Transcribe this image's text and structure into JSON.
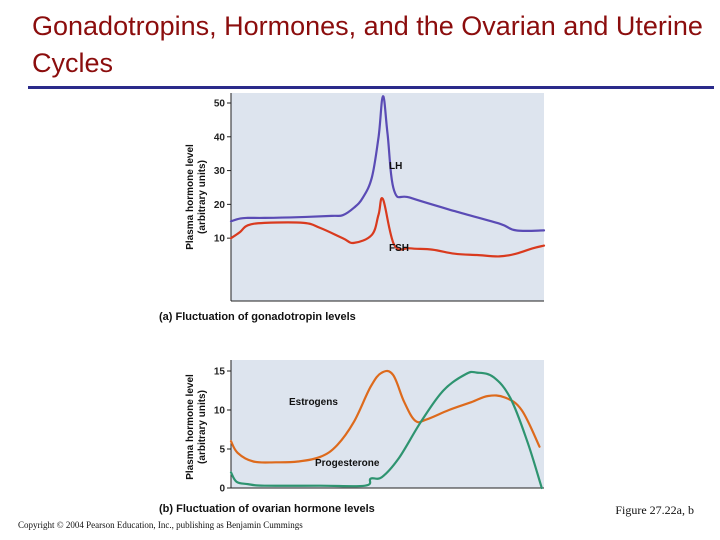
{
  "slide": {
    "title": "Gonadotropins, Hormones, and the Ovarian and Uterine Cycles",
    "figure_ref": "Figure 27.22a, b",
    "copyright": "Copyright © 2004 Pearson Education, Inc., publishing as Benjamin Cummings"
  },
  "colors": {
    "title": "#8b0d0d",
    "rule": "#2a2a8a",
    "plot_bg": "#dde4ee",
    "lh": "#5a4bb5",
    "fsh": "#d93a1e",
    "estrogens": "#dd6a1c",
    "progesterone": "#2e9470"
  },
  "chart_data": [
    {
      "type": "line",
      "caption": "(a) Fluctuation of gonadotropin levels",
      "ylabel": "Plasma hormone level",
      "ylabel2": "(arbitrary units)",
      "ylim": [
        0,
        50
      ],
      "yticks": [
        "10",
        "20",
        "30",
        "40",
        "50"
      ],
      "xlim": [
        0,
        28
      ],
      "grid": false,
      "series": [
        {
          "name": "LH",
          "x": [
            0,
            0.8,
            1.5,
            3,
            6,
            9,
            10,
            11,
            11.8,
            12.6,
            13.2,
            13.6,
            14,
            14.6,
            16,
            20,
            24,
            25.5,
            28
          ],
          "values": [
            15,
            15.8,
            16,
            16,
            16.2,
            16.6,
            16.8,
            19,
            22,
            28,
            40,
            52,
            41,
            24,
            22,
            18,
            14.3,
            12.3,
            12.3
          ]
        },
        {
          "name": "FSH",
          "x": [
            0,
            0.8,
            1.5,
            3,
            6.5,
            8,
            10,
            11,
            12.6,
            13.2,
            13.6,
            14.6,
            16,
            18,
            20,
            22,
            24,
            25.5,
            27,
            28
          ],
          "values": [
            10,
            11.8,
            13.8,
            14.5,
            14.5,
            13,
            10,
            8.6,
            11,
            17,
            21.5,
            8,
            7,
            6.6,
            5.4,
            5,
            4.6,
            5.4,
            7,
            7.8
          ]
        }
      ]
    },
    {
      "type": "line",
      "caption": "(b) Fluctuation of ovarian hormone levels",
      "ylabel": "Plasma hormone level",
      "ylabel2": "(arbitrary units)",
      "ylim": [
        0,
        15
      ],
      "yticks": [
        "0",
        "5",
        "10",
        "15"
      ],
      "xlim": [
        0,
        28
      ],
      "grid": false,
      "series": [
        {
          "name": "Estrogens",
          "x": [
            0,
            0.6,
            2,
            4,
            6,
            8,
            9.5,
            11,
            12.5,
            13.5,
            14.5,
            15.5,
            16.5,
            17.5,
            19.5,
            21.5,
            23,
            24.5,
            26,
            27.6
          ],
          "values": [
            6,
            4.5,
            3.4,
            3.3,
            3.4,
            4,
            5.5,
            8.5,
            13,
            14.8,
            14.5,
            11,
            8.6,
            8.8,
            10,
            11,
            11.8,
            11.6,
            10,
            5.3
          ]
        },
        {
          "name": "Progesterone",
          "x": [
            0,
            0.5,
            1.5,
            3,
            8,
            12,
            12.5,
            13.5,
            15,
            17,
            19,
            21,
            22,
            23.5,
            25,
            26.5,
            27.8
          ],
          "values": [
            2,
            0.8,
            0.5,
            0.3,
            0.3,
            0.3,
            1.2,
            1.4,
            3.8,
            8.5,
            12.5,
            14.6,
            14.8,
            14.2,
            11.5,
            6,
            0
          ]
        }
      ]
    }
  ]
}
